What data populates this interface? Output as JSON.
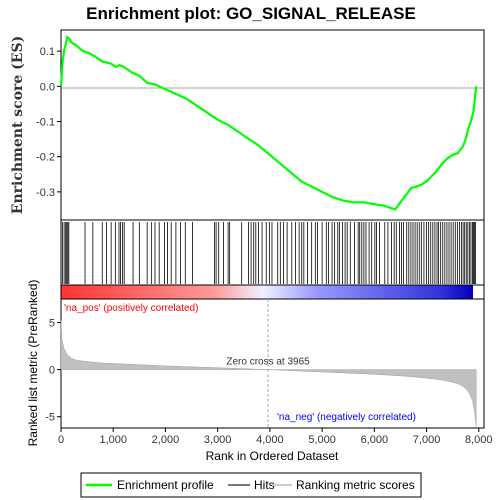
{
  "chart_data": {
    "type": "line",
    "title": "Enrichment plot: GO_SIGNAL_RELEASE",
    "es_ylabel": "Enrichment score (ES)",
    "metric_ylabel": "Ranked list metric (PreRanked)",
    "xlabel": "Rank in Ordered Dataset",
    "x_ticks": [
      0,
      1000,
      2000,
      3000,
      4000,
      5000,
      6000,
      7000,
      8000
    ],
    "x_tick_labels": [
      "0",
      "1,000",
      "2,000",
      "3,000",
      "4,000",
      "5,000",
      "6,000",
      "7,000",
      "8,000"
    ],
    "es_yticks": [
      0.1,
      0.0,
      -0.1,
      -0.2,
      -0.3
    ],
    "es_ytick_labels": [
      "0.1",
      "0.0",
      "-0.1",
      "-0.2",
      "-0.3"
    ],
    "es_ylim": [
      -0.38,
      0.16
    ],
    "metric_yticks": [
      5,
      0,
      -5
    ],
    "metric_ytick_labels": [
      "5",
      "0",
      "-5"
    ],
    "metric_ylim": [
      -6.2,
      7.5
    ],
    "xlim": [
      0,
      8100
    ],
    "n_genes": 7950,
    "zero_cross_rank": 3965,
    "zero_cross_label": "Zero cross at 3965",
    "pos_label": "'na_pos' (positively correlated)",
    "neg_label": "'na_neg' (negatively correlated)",
    "es_curve": {
      "name": "Enrichment profile",
      "x": [
        0,
        30,
        60,
        90,
        120,
        160,
        200,
        300,
        420,
        520,
        650,
        800,
        950,
        1050,
        1120,
        1200,
        1350,
        1500,
        1650,
        1800,
        1950,
        2100,
        2250,
        2400,
        2550,
        2700,
        2850,
        3000,
        3200,
        3400,
        3600,
        3800,
        4000,
        4200,
        4400,
        4600,
        4800,
        5000,
        5200,
        5400,
        5600,
        5800,
        6000,
        6200,
        6400,
        6500,
        6600,
        6700,
        6800,
        6900,
        7000,
        7100,
        7200,
        7300,
        7400,
        7500,
        7600,
        7700,
        7750,
        7800,
        7850,
        7900,
        7930,
        7950
      ],
      "y": [
        0.0,
        0.07,
        0.1,
        0.12,
        0.14,
        0.135,
        0.125,
        0.115,
        0.1,
        0.095,
        0.085,
        0.07,
        0.065,
        0.055,
        0.06,
        0.055,
        0.04,
        0.03,
        0.01,
        0.005,
        -0.005,
        -0.015,
        -0.025,
        -0.035,
        -0.05,
        -0.065,
        -0.08,
        -0.095,
        -0.11,
        -0.13,
        -0.15,
        -0.17,
        -0.195,
        -0.22,
        -0.245,
        -0.27,
        -0.285,
        -0.3,
        -0.315,
        -0.325,
        -0.33,
        -0.33,
        -0.335,
        -0.34,
        -0.35,
        -0.33,
        -0.31,
        -0.29,
        -0.285,
        -0.28,
        -0.27,
        -0.255,
        -0.24,
        -0.22,
        -0.205,
        -0.195,
        -0.19,
        -0.17,
        -0.15,
        -0.12,
        -0.1,
        -0.07,
        -0.03,
        0.0
      ]
    },
    "hits_legend": "Hits",
    "metric_legend": "Ranking metric scores",
    "hit_ranks": [
      30,
      60,
      90,
      110,
      130,
      150,
      460,
      610,
      790,
      870,
      960,
      1040,
      1110,
      1140,
      1180,
      1210,
      1380,
      1500,
      1650,
      1730,
      1800,
      1880,
      1980,
      2040,
      2110,
      2200,
      2290,
      2380,
      2520,
      2940,
      2970,
      3020,
      3110,
      3200,
      3230,
      3460,
      3590,
      3640,
      3690,
      3730,
      3780,
      3850,
      3930,
      3990,
      4040,
      4150,
      4200,
      4260,
      4330,
      4420,
      4490,
      4560,
      4610,
      4650,
      4720,
      4800,
      4870,
      4910,
      5000,
      5080,
      5120,
      5190,
      5240,
      5300,
      5330,
      5390,
      5440,
      5480,
      5540,
      5620,
      5690,
      5720,
      5760,
      5800,
      5840,
      5900,
      5950,
      6010,
      6040,
      6100,
      6200,
      6260,
      6330,
      6380,
      6420,
      6480,
      6520,
      6560,
      6620,
      6660,
      6700,
      6740,
      6780,
      6820,
      6860,
      6900,
      6950,
      7000,
      7040,
      7080,
      7120,
      7160,
      7200,
      7230,
      7270,
      7310,
      7350,
      7390,
      7430,
      7470,
      7510,
      7550,
      7590,
      7630,
      7670,
      7700,
      7730,
      7760,
      7790,
      7820,
      7850,
      7880,
      7900,
      7920,
      7940
    ],
    "metric_profile": {
      "x": [
        0,
        20,
        60,
        120,
        200,
        300,
        500,
        800,
        1200,
        2000,
        3000,
        3965,
        5000,
        6000,
        6600,
        7000,
        7300,
        7500,
        7650,
        7750,
        7820,
        7880,
        7920,
        7950
      ],
      "y": [
        5.2,
        3.2,
        2.2,
        1.6,
        1.2,
        1.0,
        0.85,
        0.7,
        0.6,
        0.4,
        0.2,
        0.0,
        -0.25,
        -0.5,
        -0.7,
        -0.9,
        -1.1,
        -1.35,
        -1.6,
        -2.0,
        -2.5,
        -3.3,
        -4.5,
        -6.0
      ]
    },
    "colors": {
      "es_line": "#00ff00",
      "hit": "#000000",
      "metric_fill": "#c0c0c0",
      "pos_text": "#ff0000",
      "neg_text": "#0000ff",
      "zero_line": "#aaaaaa"
    },
    "legend_placement": "bottom",
    "grid": false
  }
}
